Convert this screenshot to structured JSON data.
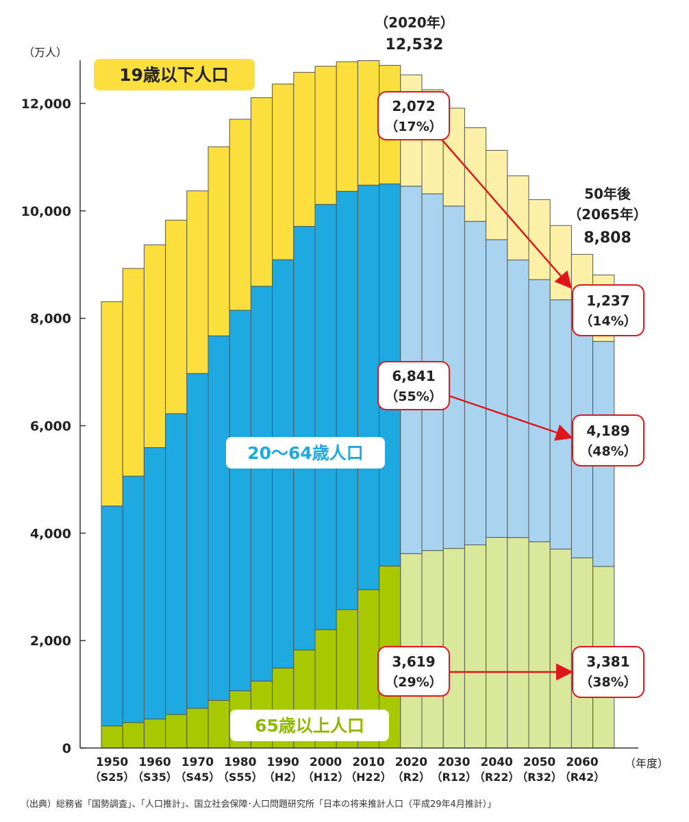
{
  "chart_data": {
    "type": "bar",
    "stacked": true,
    "y_unit": "（万人）",
    "x_unit": "（年度）",
    "ylim": [
      0,
      12800
    ],
    "y_ticks": [
      "0",
      "2,000",
      "4,000",
      "6,000",
      "8,000",
      "10,000",
      "12,000"
    ],
    "y_tick_values": [
      0,
      2000,
      4000,
      6000,
      8000,
      10000,
      12000
    ],
    "x_tick_labels": [
      {
        "year": "1950",
        "era": "（S25）"
      },
      {
        "year": "1960",
        "era": "（S35）"
      },
      {
        "year": "1970",
        "era": "（S45）"
      },
      {
        "year": "1980",
        "era": "（S55）"
      },
      {
        "year": "1990",
        "era": "（H2）"
      },
      {
        "year": "2000",
        "era": "（H12）"
      },
      {
        "year": "2010",
        "era": "（H22）"
      },
      {
        "year": "2020",
        "era": "（R2）"
      },
      {
        "year": "2030",
        "era": "（R12）"
      },
      {
        "year": "2040",
        "era": "（R22）"
      },
      {
        "year": "2050",
        "era": "（R32）"
      },
      {
        "year": "2060",
        "era": "（R42）"
      }
    ],
    "categories": [
      "1950",
      "1955",
      "1960",
      "1965",
      "1970",
      "1975",
      "1980",
      "1985",
      "1990",
      "1995",
      "2000",
      "2005",
      "2010",
      "2015",
      "2020",
      "2025",
      "2030",
      "2035",
      "2040",
      "2045",
      "2050",
      "2055",
      "2060",
      "2065"
    ],
    "projected_from_index": 14,
    "series": [
      {
        "name": "65歳以上人口",
        "key": "senior",
        "color": "#a8c800",
        "projected_color": "#d9e89a",
        "values": [
          411,
          475,
          540,
          624,
          739,
          887,
          1065,
          1247,
          1489,
          1826,
          2204,
          2576,
          2948,
          3387,
          3619,
          3677,
          3716,
          3782,
          3921,
          3919,
          3841,
          3704,
          3540,
          3381
        ]
      },
      {
        "name": "20〜64歳人口",
        "key": "working",
        "color": "#1fa9e1",
        "projected_color": "#a9d4f0",
        "values": [
          4095,
          4587,
          5053,
          5600,
          6233,
          6786,
          7084,
          7350,
          7602,
          7885,
          7917,
          7789,
          7531,
          7115,
          6841,
          6641,
          6374,
          6022,
          5543,
          5167,
          4880,
          4640,
          4328,
          4189
        ]
      },
      {
        "name": "19歳以下人口",
        "key": "youth",
        "color": "#fbdf3c",
        "projected_color": "#fdf1a8",
        "values": [
          3802,
          3866,
          3774,
          3604,
          3400,
          3521,
          3557,
          3510,
          3270,
          2868,
          2572,
          2412,
          2318,
          2207,
          2072,
          1937,
          1822,
          1743,
          1663,
          1566,
          1489,
          1383,
          1322,
          1237
        ]
      }
    ],
    "series_labels": [
      "19歳以下人口",
      "20～64歳人口",
      "65歳以上人口"
    ],
    "annotations": {
      "peak": {
        "year": "（2020年）",
        "value": "12,532"
      },
      "future": {
        "line1": "50年後",
        "line2": "（2065年）",
        "value": "8,808"
      },
      "callouts": [
        {
          "value": "2,072",
          "pct": "（17%）"
        },
        {
          "value": "1,237",
          "pct": "（14%）"
        },
        {
          "value": "6,841",
          "pct": "（55%）"
        },
        {
          "value": "4,189",
          "pct": "（48%）"
        },
        {
          "value": "3,619",
          "pct": "（29%）"
        },
        {
          "value": "3,381",
          "pct": "（38%）"
        }
      ]
    }
  },
  "source_note": "（出典）総務省「国勢調査」、「人口推計」、国立社会保障･人口問題研究所「日本の将来推計人口（平成29年4月推計）」"
}
